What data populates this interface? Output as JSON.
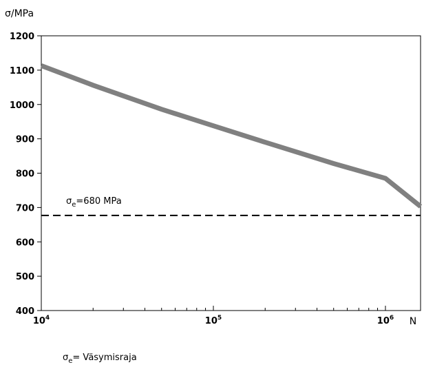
{
  "chart_data": {
    "type": "line",
    "title": "",
    "ylabel": "σ/MPa",
    "xlabel": "N",
    "x_scale": "log",
    "xlim": [
      10000,
      1600000
    ],
    "ylim": [
      400,
      1200
    ],
    "y_ticks": [
      400,
      500,
      600,
      700,
      800,
      900,
      1000,
      1100,
      1200
    ],
    "x_ticks": [
      {
        "value": 10000,
        "base": "10",
        "exp": "4"
      },
      {
        "value": 100000,
        "base": "10",
        "exp": "5"
      },
      {
        "value": 1000000,
        "base": "10",
        "exp": "6"
      }
    ],
    "grid": false,
    "series": [
      {
        "color": "#808080",
        "x": [
          10000,
          20000,
          50000,
          100000,
          200000,
          500000,
          1000000,
          1600000
        ],
        "values": [
          1113,
          1056,
          986,
          938,
          890,
          828,
          785,
          703
        ]
      }
    ],
    "reference_line": {
      "value": 677,
      "label_symbol": "σ",
      "label_sub": "e",
      "label_rest": "=680 MPa",
      "style": "dashed",
      "color": "#000000"
    },
    "footnote": {
      "symbol": "σ",
      "sub": "e",
      "text": "= Väsymisraja"
    }
  }
}
